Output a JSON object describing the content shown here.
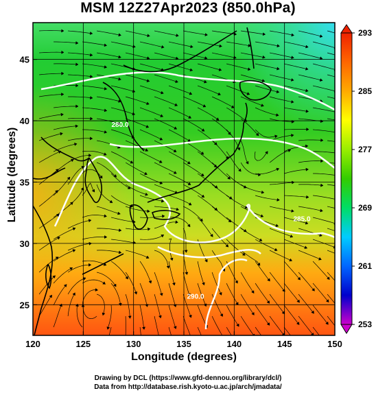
{
  "title": "MSM 12Z27Apr2023 (850.0hPa)",
  "x_axis": {
    "label": "Longitude (degrees)",
    "range": [
      120,
      150
    ],
    "ticks": [
      "120",
      "125",
      "130",
      "135",
      "140",
      "145",
      "150"
    ]
  },
  "y_axis": {
    "label": "Latitude  (degrees)",
    "range": [
      22.5,
      48
    ],
    "ticks": [
      "25",
      "30",
      "35",
      "40",
      "45"
    ]
  },
  "colorbar": {
    "ticks": [
      "253",
      "261",
      "269",
      "277",
      "285",
      "293"
    ],
    "range": [
      253,
      293
    ],
    "colors": [
      "#cc00cc",
      "#0000cc",
      "#0066ff",
      "#00ccff",
      "#00dd66",
      "#33cc00",
      "#99ee00",
      "#ffff00",
      "#ffaa00",
      "#ff6600",
      "#ee2200"
    ]
  },
  "contours": [
    {
      "label": "280.0",
      "lat": 39.5
    },
    {
      "label": "285.0",
      "lat": 31.8
    },
    {
      "label": "290.0",
      "lat": 25.5
    }
  ],
  "credits": {
    "line1": "Drawing by DCL (https://www.gfd-dennou.org/library/dcl/)",
    "line2": "Data from http://database.rish.kyoto-u.ac.jp/arch/jmadata/"
  }
}
